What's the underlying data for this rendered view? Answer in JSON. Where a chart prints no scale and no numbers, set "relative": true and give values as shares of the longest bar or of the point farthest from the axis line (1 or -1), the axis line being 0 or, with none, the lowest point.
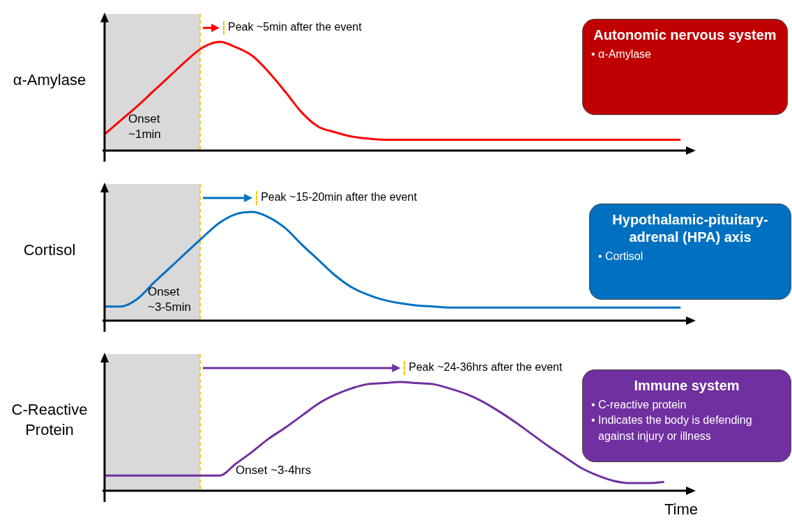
{
  "chart_data": [
    {
      "type": "line",
      "ylabel": "α-Amylase",
      "relative": true,
      "categories": [
        null,
        null,
        null,
        null,
        null,
        null,
        null,
        null,
        null,
        null,
        null,
        null,
        null,
        null,
        null,
        null,
        null,
        null,
        null,
        null,
        null,
        null,
        null,
        null,
        null,
        null,
        null,
        null,
        null,
        null,
        null,
        null,
        null,
        null,
        null,
        null
      ],
      "series": [
        {
          "color": "#ff0000",
          "values": [
            0.15,
            0.28,
            0.41,
            0.55,
            0.69,
            0.83,
            0.95,
            1.0,
            0.95,
            0.87,
            0.72,
            0.54,
            0.35,
            0.22,
            0.17,
            0.13,
            0.11,
            0.1,
            0.1,
            0.1,
            0.1,
            0.1,
            0.1,
            0.1,
            0.1,
            0.1,
            0.1,
            0.1,
            0.1,
            0.1,
            0.1,
            0.1,
            0.1,
            0.1,
            0.1,
            0.1
          ]
        }
      ],
      "annotations": [
        "Onset ~1min",
        "Peak ~5min after the event"
      ]
    },
    {
      "type": "other",
      "title": "Autonomic nervous system",
      "color": "#c00000",
      "annotations": [
        "• α-Amylase"
      ]
    },
    {
      "type": "line",
      "ylabel": "Cortisol",
      "relative": true,
      "categories": [
        null,
        null,
        null,
        null,
        null,
        null,
        null,
        null,
        null,
        null,
        null,
        null,
        null,
        null,
        null,
        null,
        null,
        null,
        null,
        null,
        null,
        null,
        null,
        null,
        null,
        null,
        null,
        null,
        null,
        null,
        null,
        null,
        null,
        null,
        null,
        null
      ],
      "series": [
        {
          "color": "#0070c0",
          "values": [
            0.13,
            0.13,
            0.2,
            0.35,
            0.49,
            0.63,
            0.77,
            0.9,
            0.98,
            1.0,
            0.95,
            0.85,
            0.7,
            0.56,
            0.42,
            0.31,
            0.24,
            0.19,
            0.16,
            0.14,
            0.13,
            0.12,
            0.12,
            0.12,
            0.12,
            0.12,
            0.12,
            0.12,
            0.12,
            0.12,
            0.12,
            0.12,
            0.12,
            0.12,
            0.12,
            0.12
          ]
        }
      ],
      "annotations": [
        "Onset ~3-5min",
        "Peak ~15-20min after the event"
      ]
    },
    {
      "type": "other",
      "title": "Hypothalamic-pituitary-adrenal (HPA) axis",
      "color": "#0070c0",
      "annotations": [
        "• Cortisol"
      ]
    },
    {
      "type": "line",
      "ylabel": "C-Reactive Protein",
      "xlabel": "Time",
      "relative": true,
      "categories": [
        null,
        null,
        null,
        null,
        null,
        null,
        null,
        null,
        null,
        null,
        null,
        null,
        null,
        null,
        null,
        null,
        null,
        null,
        null,
        null,
        null,
        null,
        null,
        null,
        null,
        null,
        null,
        null,
        null,
        null,
        null,
        null,
        null,
        null,
        null,
        null
      ],
      "series": [
        {
          "color": "#7030a0",
          "values": [
            0.14,
            0.14,
            0.14,
            0.14,
            0.14,
            0.14,
            0.14,
            0.14,
            0.25,
            0.36,
            0.48,
            0.58,
            0.69,
            0.8,
            0.88,
            0.94,
            0.98,
            0.99,
            1.0,
            0.99,
            0.98,
            0.94,
            0.89,
            0.82,
            0.73,
            0.63,
            0.52,
            0.41,
            0.31,
            0.21,
            0.14,
            0.09,
            0.07,
            0.07,
            0.08,
            null
          ]
        }
      ],
      "annotations": [
        "Onset ~3-4hrs",
        "Peak ~24-36hrs after the event"
      ]
    },
    {
      "type": "other",
      "title": "Immune system",
      "color": "#7030a0",
      "annotations": [
        "• C-reactive protein",
        "• Indicates the body is defending against injury or illness"
      ]
    }
  ]
}
